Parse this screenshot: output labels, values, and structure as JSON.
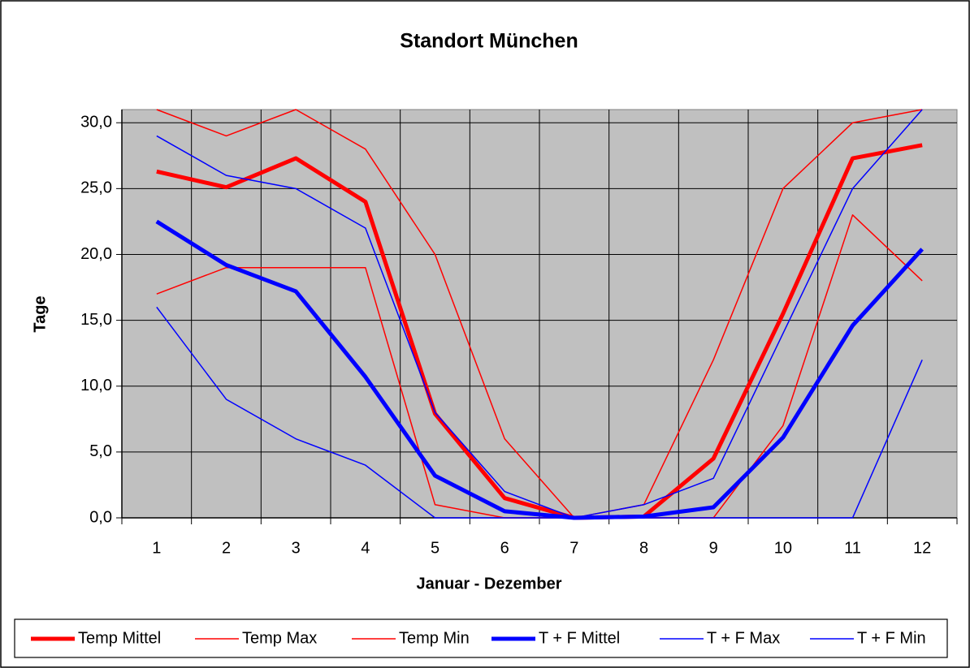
{
  "chart_data": {
    "type": "line",
    "title": "Standort München",
    "xlabel": "Januar - Dezember",
    "ylabel": "Tage",
    "categories": [
      "1",
      "2",
      "3",
      "4",
      "5",
      "6",
      "7",
      "8",
      "9",
      "10",
      "11",
      "12"
    ],
    "series": [
      {
        "name": "Temp Mittel",
        "color": "#ff0000",
        "width": 5,
        "values": [
          26.3,
          25.1,
          27.3,
          24.0,
          7.9,
          1.5,
          0.0,
          0.1,
          4.5,
          15.5,
          27.3,
          28.3
        ]
      },
      {
        "name": "Temp Max",
        "color": "#ff0000",
        "width": 1.5,
        "values": [
          31,
          29,
          31,
          28,
          20,
          6,
          0,
          1,
          12,
          25,
          30,
          31
        ]
      },
      {
        "name": "Temp Min",
        "color": "#ff0000",
        "width": 1.5,
        "values": [
          17,
          19,
          19,
          19,
          1,
          0,
          0,
          0,
          0,
          7,
          23,
          18
        ]
      },
      {
        "name": "T + F Mittel",
        "color": "#0000ff",
        "width": 5,
        "values": [
          22.5,
          19.2,
          17.2,
          10.7,
          3.2,
          0.5,
          0.0,
          0.1,
          0.8,
          6.1,
          14.6,
          20.4
        ]
      },
      {
        "name": "T + F Max",
        "color": "#0000ff",
        "width": 1.5,
        "values": [
          29,
          26,
          25,
          22,
          8,
          2,
          0,
          1,
          3,
          14,
          25,
          31
        ]
      },
      {
        "name": "T + F Min",
        "color": "#0000ff",
        "width": 1.5,
        "values": [
          16,
          9,
          6,
          4,
          0,
          0,
          0,
          0,
          0,
          0,
          0,
          12
        ]
      }
    ],
    "ylim": [
      0,
      31
    ],
    "yticks": [
      {
        "value": 0,
        "label": "0,0"
      },
      {
        "value": 5,
        "label": "5,0"
      },
      {
        "value": 10,
        "label": "10,0"
      },
      {
        "value": 15,
        "label": "15,0"
      },
      {
        "value": 20,
        "label": "20,0"
      },
      {
        "value": 25,
        "label": "25,0"
      },
      {
        "value": 30,
        "label": "30,0"
      }
    ],
    "grid": true,
    "legend": "bottom",
    "plot_background": "#c0c0c0"
  }
}
